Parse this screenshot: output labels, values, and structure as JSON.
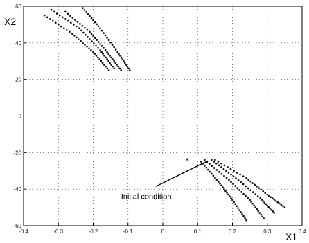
{
  "chart_data": {
    "type": "scatter",
    "title": "",
    "xlabel": "X1",
    "ylabel": "X2",
    "xlim": [
      -0.4,
      0.4
    ],
    "ylim": [
      -60,
      60
    ],
    "xticks": [
      -0.4,
      -0.3,
      -0.2,
      -0.1,
      0,
      0.1,
      0.2,
      0.3,
      0.4
    ],
    "yticks": [
      -60,
      -40,
      -20,
      0,
      20,
      40,
      60
    ],
    "xtick_labels": [
      "-0.4",
      "-0.3",
      "-0.2",
      "-0.1",
      "0",
      "0.1",
      "0.2",
      "0.3",
      "0.4"
    ],
    "ytick_labels": [
      "-60",
      "-40",
      "-20",
      "0",
      "20",
      "40",
      "60"
    ],
    "grid": "dotted",
    "series": [
      {
        "points": [
          [
            -0.34,
            55
          ],
          [
            -0.26,
            45
          ],
          [
            -0.2,
            35
          ],
          [
            -0.155,
            25
          ]
        ]
      },
      {
        "points": [
          [
            -0.32,
            58
          ],
          [
            -0.24,
            48
          ],
          [
            -0.18,
            36
          ],
          [
            -0.14,
            26
          ]
        ]
      },
      {
        "points": [
          [
            -0.28,
            57
          ],
          [
            -0.21,
            46
          ],
          [
            -0.16,
            35
          ],
          [
            -0.12,
            25
          ]
        ]
      },
      {
        "points": [
          [
            -0.23,
            59
          ],
          [
            -0.18,
            48
          ],
          [
            -0.13,
            35
          ],
          [
            -0.095,
            25
          ]
        ]
      },
      {
        "points": [
          [
            0.11,
            -25
          ],
          [
            0.16,
            -36
          ],
          [
            0.2,
            -46
          ],
          [
            0.24,
            -57
          ]
        ]
      },
      {
        "points": [
          [
            0.12,
            -24
          ],
          [
            0.19,
            -35
          ],
          [
            0.25,
            -46
          ],
          [
            0.29,
            -56
          ]
        ]
      },
      {
        "points": [
          [
            0.14,
            -24
          ],
          [
            0.21,
            -34
          ],
          [
            0.28,
            -45
          ],
          [
            0.32,
            -53
          ]
        ]
      },
      {
        "points": [
          [
            0.15,
            -24
          ],
          [
            0.24,
            -34
          ],
          [
            0.3,
            -43
          ],
          [
            0.35,
            -50
          ]
        ]
      }
    ],
    "markers": [
      {
        "label": "",
        "x": 0.07,
        "y": -24.5
      }
    ],
    "annotations": [
      {
        "text": "Initial condition",
        "x": -0.12,
        "y": -45.5,
        "arrow_from": [
          -0.02,
          -38.5
        ],
        "arrow_to": [
          0.13,
          -24.5
        ]
      }
    ]
  }
}
